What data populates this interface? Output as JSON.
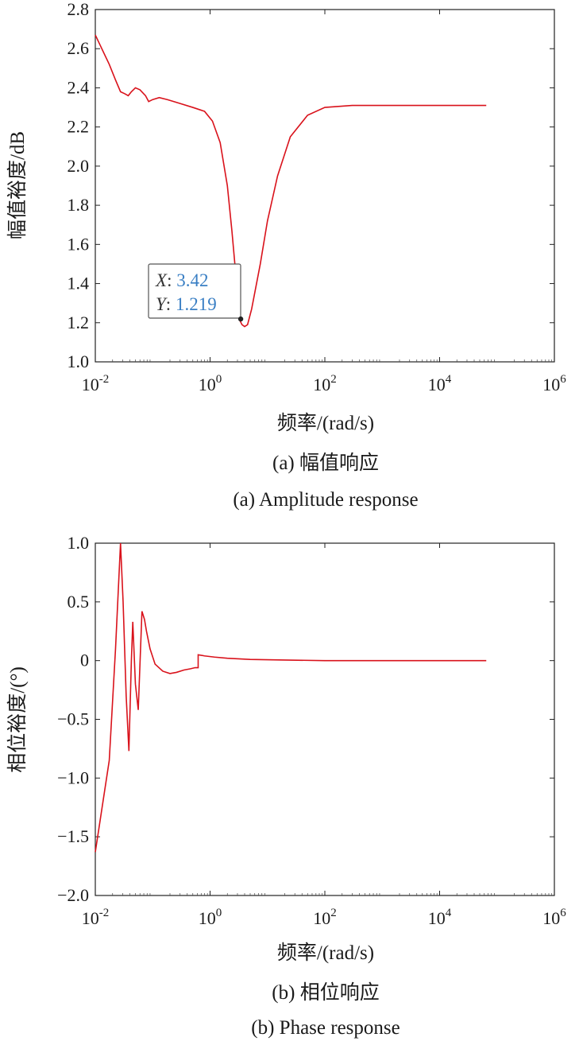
{
  "chart_data": [
    {
      "type": "line",
      "xscale": "log",
      "xlim": [
        0.01,
        1000000
      ],
      "ylim": [
        1.0,
        2.8
      ],
      "xlabel": "频率/(rad/s)",
      "ylabel": "幅值裕度/dB",
      "xticks": [
        0.01,
        1,
        100,
        10000,
        1000000
      ],
      "xtick_labels": [
        {
          "base": "10",
          "exp": "-2"
        },
        {
          "base": "10",
          "exp": "0"
        },
        {
          "base": "10",
          "exp": "2"
        },
        {
          "base": "10",
          "exp": "4"
        },
        {
          "base": "10",
          "exp": "6"
        }
      ],
      "yticks": [
        "1.0",
        "1.2",
        "1.4",
        "1.6",
        "1.8",
        "2.0",
        "2.2",
        "2.4",
        "2.6",
        "2.8"
      ],
      "grid": false,
      "color": "#d9121b",
      "series": [
        {
          "x": [
            0.01,
            0.0175,
            0.0225,
            0.0275,
            0.0325,
            0.0375,
            0.0425,
            0.05,
            0.06,
            0.075,
            0.085,
            0.1,
            0.13,
            0.18,
            0.3,
            0.5,
            0.8,
            1.1,
            1.5,
            2.0,
            2.4,
            2.8,
            3.2,
            3.6,
            4.0,
            4.5,
            5.3,
            7.5,
            10,
            15,
            25,
            50,
            100,
            300,
            1000,
            10000,
            65000
          ],
          "y": [
            2.67,
            2.52,
            2.44,
            2.38,
            2.37,
            2.36,
            2.38,
            2.4,
            2.39,
            2.36,
            2.33,
            2.34,
            2.35,
            2.34,
            2.32,
            2.3,
            2.28,
            2.23,
            2.12,
            1.9,
            1.67,
            1.45,
            1.22,
            1.19,
            1.18,
            1.19,
            1.27,
            1.5,
            1.72,
            1.95,
            2.15,
            2.26,
            2.3,
            2.31,
            2.31,
            2.31,
            2.31
          ]
        }
      ],
      "datatip": {
        "x_key": "X",
        "x_val": "3.42",
        "y_key": "Y",
        "y_val": "1.219",
        "x": 3.42,
        "y": 1.219
      },
      "caption_cn": "(a) 幅值响应",
      "caption_en": "(a) Amplitude response"
    },
    {
      "type": "line",
      "xscale": "log",
      "xlim": [
        0.01,
        1000000
      ],
      "ylim": [
        -2.0,
        1.0
      ],
      "xlabel": "频率/(rad/s)",
      "ylabel": "相位裕度/(°)",
      "xticks": [
        0.01,
        1,
        100,
        10000,
        1000000
      ],
      "xtick_labels": [
        {
          "base": "10",
          "exp": "-2"
        },
        {
          "base": "10",
          "exp": "0"
        },
        {
          "base": "10",
          "exp": "2"
        },
        {
          "base": "10",
          "exp": "4"
        },
        {
          "base": "10",
          "exp": "6"
        }
      ],
      "yticks": [
        "−2.0",
        "−1.5",
        "−1.0",
        "−0.5",
        "0",
        "0.5",
        "1.0"
      ],
      "grid": false,
      "color": "#d9121b",
      "series": [
        {
          "x": [
            0.01,
            0.0175,
            0.0225,
            0.0275,
            0.0305,
            0.0345,
            0.0385,
            0.0425,
            0.045,
            0.05,
            0.056,
            0.065,
            0.072,
            0.078,
            0.09,
            0.11,
            0.15,
            0.2,
            0.26,
            0.35,
            0.45,
            0.55,
            0.62,
            0.62,
            0.8,
            1.2,
            2,
            5,
            20,
            100,
            1000,
            10000,
            65000
          ],
          "y": [
            -1.63,
            -0.85,
            0.1,
            1.0,
            0.5,
            -0.3,
            -0.77,
            0.0,
            0.33,
            -0.2,
            -0.42,
            0.42,
            0.35,
            0.25,
            0.1,
            -0.03,
            -0.09,
            -0.11,
            -0.1,
            -0.08,
            -0.07,
            -0.06,
            -0.06,
            0.05,
            0.04,
            0.03,
            0.02,
            0.01,
            0.005,
            0.0,
            0.0,
            0.0,
            0.0
          ]
        }
      ],
      "caption_cn": "(b) 相位响应",
      "caption_en": "(b) Phase response"
    }
  ]
}
